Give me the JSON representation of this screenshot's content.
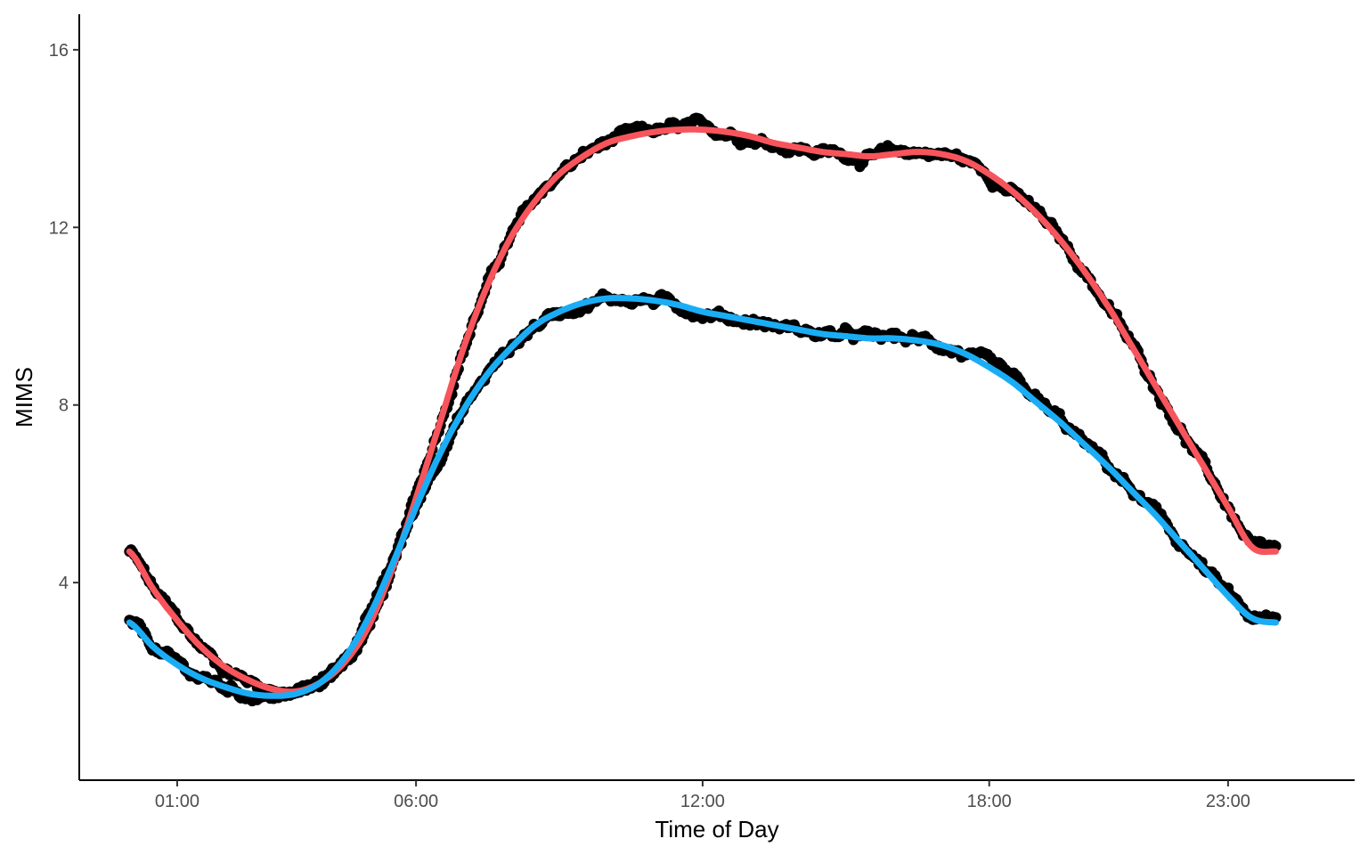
{
  "chart_data": {
    "type": "scatter",
    "title": "",
    "xlabel": "Time of Day",
    "ylabel": "MIMS",
    "x_unit": "hours",
    "xlim": [
      -1.05,
      25.65
    ],
    "ylim": [
      -0.45,
      16.8
    ],
    "x_ticks": [
      {
        "value": 1,
        "label": "01:00"
      },
      {
        "value": 6,
        "label": "06:00"
      },
      {
        "value": 12,
        "label": "12:00"
      },
      {
        "value": 18,
        "label": "18:00"
      },
      {
        "value": 23,
        "label": "23:00"
      }
    ],
    "y_ticks": [
      {
        "value": 4,
        "label": "4"
      },
      {
        "value": 8,
        "label": "8"
      },
      {
        "value": 12,
        "label": "12"
      },
      {
        "value": 16,
        "label": "16"
      }
    ],
    "grid": false,
    "legend": "none",
    "point_color": "#000000",
    "series": [
      {
        "style": "points+smooth",
        "smooth_color": "#F8545C",
        "x": [
          0.0,
          0.5,
          1.0,
          1.5,
          2.0,
          2.5,
          3.0,
          3.5,
          4.0,
          4.5,
          5.0,
          5.5,
          6.0,
          6.5,
          7.0,
          7.5,
          8.0,
          8.5,
          9.0,
          9.5,
          10.0,
          10.5,
          11.0,
          11.5,
          12.0,
          12.5,
          13.0,
          13.5,
          14.0,
          14.5,
          15.0,
          15.5,
          16.0,
          16.5,
          17.0,
          17.5,
          18.0,
          18.5,
          19.0,
          19.5,
          20.0,
          20.5,
          21.0,
          21.5,
          22.0,
          22.5,
          23.0,
          23.5,
          24.0
        ],
        "y": [
          4.7,
          3.85,
          3.15,
          2.55,
          2.1,
          1.8,
          1.6,
          1.55,
          1.75,
          2.2,
          3.0,
          4.3,
          5.9,
          7.6,
          9.3,
          10.7,
          11.8,
          12.6,
          13.2,
          13.6,
          13.9,
          14.05,
          14.15,
          14.2,
          14.2,
          14.15,
          14.05,
          13.9,
          13.8,
          13.7,
          13.65,
          13.6,
          13.65,
          13.7,
          13.65,
          13.5,
          13.2,
          12.8,
          12.3,
          11.7,
          11.0,
          10.2,
          9.3,
          8.4,
          7.5,
          6.6,
          5.7,
          4.8,
          4.7
        ],
        "noise": 0.15
      },
      {
        "style": "points+smooth",
        "smooth_color": "#1AADF5",
        "x": [
          0.0,
          0.5,
          1.0,
          1.5,
          2.0,
          2.5,
          3.0,
          3.5,
          4.0,
          4.5,
          5.0,
          5.5,
          6.0,
          6.5,
          7.0,
          7.5,
          8.0,
          8.5,
          9.0,
          9.5,
          10.0,
          10.5,
          11.0,
          11.5,
          12.0,
          12.5,
          13.0,
          13.5,
          14.0,
          14.5,
          15.0,
          15.5,
          16.0,
          16.5,
          17.0,
          17.5,
          18.0,
          18.5,
          19.0,
          19.5,
          20.0,
          20.5,
          21.0,
          21.5,
          22.0,
          22.5,
          23.0,
          23.5,
          24.0
        ],
        "y": [
          3.1,
          2.55,
          2.15,
          1.85,
          1.65,
          1.5,
          1.45,
          1.5,
          1.75,
          2.3,
          3.2,
          4.4,
          5.7,
          6.9,
          7.9,
          8.7,
          9.3,
          9.8,
          10.1,
          10.3,
          10.4,
          10.4,
          10.35,
          10.25,
          10.1,
          10.0,
          9.9,
          9.8,
          9.7,
          9.6,
          9.55,
          9.5,
          9.5,
          9.45,
          9.35,
          9.15,
          8.85,
          8.5,
          8.05,
          7.6,
          7.1,
          6.6,
          6.05,
          5.5,
          4.9,
          4.3,
          3.7,
          3.2,
          3.1
        ],
        "noise": 0.15
      }
    ]
  }
}
